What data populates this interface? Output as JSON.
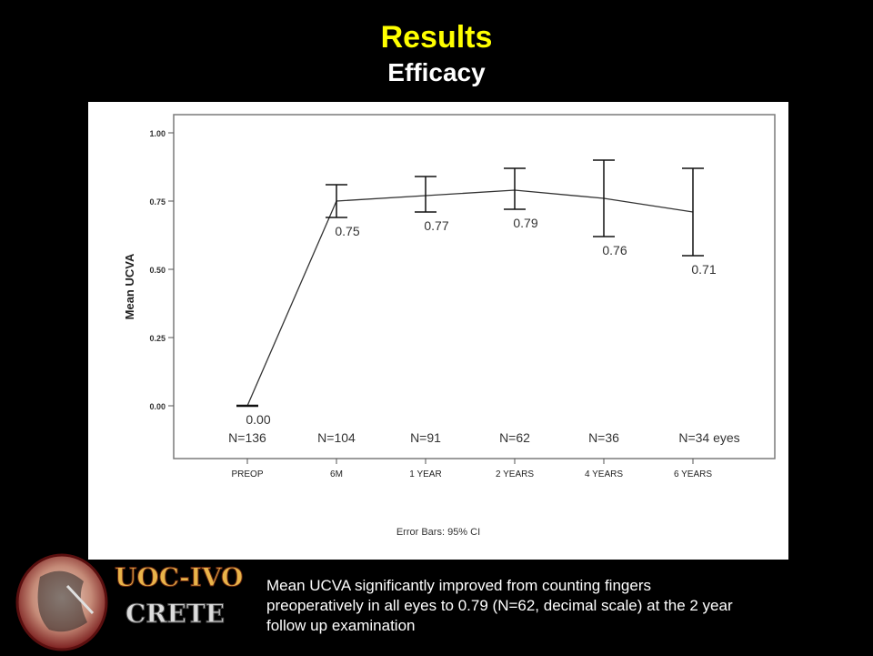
{
  "slide": {
    "title": "Results",
    "subtitle": "Efficacy",
    "logo_text": [
      "UOC-IVO",
      "CRETE"
    ],
    "caption_lines": [
      "Mean UCVA significantly improved from counting fingers",
      "preoperatively in all eyes to 0.79 (N=62, decimal scale) at the 2 year",
      "follow up examination"
    ]
  },
  "colors": {
    "background": "#000000",
    "title": "#ffff00",
    "subtitle": "#ffffff",
    "line": "#333333"
  },
  "chart_data": {
    "type": "line",
    "title": "",
    "xlabel": "",
    "ylabel": "Mean UCVA",
    "ylim": [
      0,
      1.0
    ],
    "y_ticks": [
      "0.00",
      "0.25",
      "0.50",
      "0.75",
      "1.00"
    ],
    "categories": [
      "PREOP",
      "6M",
      "1 YEAR",
      "2 YEARS",
      "4 YEARS",
      "6 YEARS"
    ],
    "series": [
      {
        "values": [
          0.0,
          0.75,
          0.77,
          0.79,
          0.76,
          0.71
        ],
        "value_labels": [
          "0.00",
          "0.75",
          "0.77",
          "0.79",
          "0.76",
          "0.71"
        ],
        "ci_low": [
          0.0,
          0.69,
          0.71,
          0.72,
          0.62,
          0.55
        ],
        "ci_high": [
          0.0,
          0.81,
          0.84,
          0.87,
          0.9,
          0.87
        ]
      }
    ],
    "n_labels": [
      "N=136",
      "N=104",
      "N=91",
      "N=62",
      "N=36",
      "N=34 eyes"
    ],
    "footnote": "Error Bars: 95% CI",
    "grid": false
  }
}
